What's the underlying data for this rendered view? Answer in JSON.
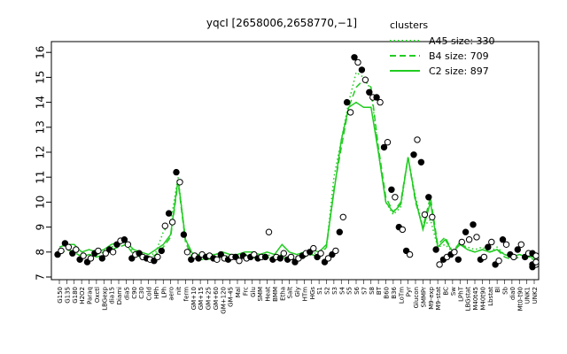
{
  "chart_data": {
    "type": "line",
    "title": "yqcI [2658006,2658770,−1]",
    "xlabel": "",
    "ylabel": "",
    "ylim": [
      7,
      16
    ],
    "y_ticks": [
      7,
      8,
      9,
      10,
      11,
      12,
      13,
      14,
      15,
      16
    ],
    "x_tick_labels": [
      "G150",
      "G135",
      "G180",
      "H2O2",
      "Paraq",
      "Oxctl",
      "LBGexp",
      "dia15",
      "Diami",
      "dia5",
      "C90",
      "C30",
      "Cold",
      "HPh",
      "LPh",
      "aero",
      "nit",
      "ferm",
      "GM+10",
      "GM+15",
      "GM+25",
      "GM+60",
      "GM+120",
      "GM-45",
      "Mal",
      "Frc",
      "Glu",
      "SMM",
      "Heat",
      "BMM",
      "Etha",
      "Salt",
      "Gly",
      "HTm",
      "HGs",
      "S1",
      "S2",
      "S3",
      "S4",
      "S5",
      "S6",
      "S7",
      "S8",
      "BT",
      "B60",
      "B36",
      "LoTm",
      "Pyr",
      "Glucon",
      "SMMPr",
      "M9-exp",
      "M9-stat",
      "BC",
      "Sw",
      "LPhT",
      "LBGstat",
      "M40t45",
      "M40t90",
      "Lbstat",
      "Bl",
      "Sb",
      "dia0",
      "Mt0-t90",
      "UNK1",
      "UNK2"
    ],
    "legend": {
      "title": "clusters",
      "placement": "top-right",
      "entries": [
        {
          "label": "A45 size: 330",
          "style": "dotted"
        },
        {
          "label": "B4 size: 709",
          "style": "dashed"
        },
        {
          "label": "C2 size: 897",
          "style": "solid"
        }
      ]
    },
    "color": "#22cc22",
    "series": [
      {
        "name": "A45 size: 330",
        "style": "dotted",
        "values": [
          8.0,
          8.2,
          8.1,
          7.8,
          7.9,
          7.9,
          8.0,
          8.2,
          8.3,
          8.4,
          8.0,
          7.9,
          7.8,
          8.0,
          8.8,
          9.2,
          11.0,
          8.5,
          7.8,
          7.8,
          7.8,
          7.8,
          7.9,
          7.8,
          7.8,
          7.9,
          7.9,
          7.8,
          7.9,
          7.8,
          7.9,
          7.8,
          7.8,
          7.9,
          8.0,
          7.9,
          8.2,
          11.0,
          12.5,
          14.0,
          15.2,
          15.0,
          14.5,
          12.0,
          10.0,
          9.5,
          9.8,
          11.8,
          10.2,
          9.0,
          9.3,
          8.2,
          8.3,
          8.0,
          8.3,
          8.2,
          8.1,
          8.2,
          8.0,
          8.2,
          7.9,
          7.8,
          7.9,
          7.8,
          7.8
        ]
      },
      {
        "name": "B4 size: 709",
        "style": "dashed",
        "values": [
          7.9,
          8.1,
          8.0,
          7.8,
          7.9,
          7.8,
          7.9,
          8.1,
          8.2,
          8.3,
          7.9,
          7.8,
          7.7,
          7.9,
          8.2,
          8.6,
          10.8,
          8.4,
          7.7,
          7.7,
          7.7,
          7.8,
          7.8,
          7.7,
          7.7,
          7.8,
          7.8,
          7.7,
          7.8,
          7.7,
          7.8,
          7.7,
          7.7,
          7.8,
          7.9,
          7.8,
          8.2,
          10.5,
          12.2,
          13.8,
          14.6,
          14.9,
          14.6,
          12.2,
          10.2,
          9.6,
          10.0,
          11.8,
          10.0,
          9.0,
          10.2,
          8.3,
          8.6,
          8.0,
          8.4,
          8.1,
          8.0,
          8.1,
          8.0,
          8.1,
          7.8,
          7.7,
          7.8,
          7.8,
          7.7
        ]
      },
      {
        "name": "C2 size: 897",
        "style": "solid",
        "values": [
          8.2,
          8.3,
          8.3,
          8.0,
          8.1,
          8.0,
          8.1,
          8.3,
          8.4,
          8.4,
          8.1,
          8.0,
          7.9,
          8.1,
          8.3,
          8.7,
          10.9,
          8.5,
          7.9,
          7.9,
          7.9,
          7.9,
          8.0,
          7.9,
          7.9,
          8.0,
          8.0,
          7.9,
          8.0,
          7.9,
          8.3,
          8.0,
          7.9,
          8.0,
          8.1,
          8.0,
          8.3,
          10.4,
          12.5,
          13.8,
          14.0,
          13.8,
          13.8,
          12.0,
          10.0,
          9.6,
          9.9,
          11.8,
          10.1,
          8.9,
          10.0,
          8.2,
          8.5,
          8.0,
          8.3,
          8.1,
          8.0,
          8.1,
          8.0,
          8.1,
          7.9,
          7.8,
          7.9,
          7.8,
          7.8
        ]
      }
    ],
    "points": [
      [
        0,
        7.9
      ],
      [
        0,
        8.05
      ],
      [
        1,
        8.35
      ],
      [
        1,
        8.2
      ],
      [
        2,
        7.95
      ],
      [
        2,
        8.1
      ],
      [
        3,
        7.7
      ],
      [
        3,
        7.85
      ],
      [
        4,
        7.6
      ],
      [
        4,
        7.75
      ],
      [
        5,
        7.95
      ],
      [
        5,
        8.05
      ],
      [
        6,
        7.75
      ],
      [
        6,
        7.95
      ],
      [
        7,
        8.1
      ],
      [
        7,
        8.0
      ],
      [
        8,
        8.3
      ],
      [
        8,
        8.45
      ],
      [
        9,
        8.5
      ],
      [
        9,
        8.3
      ],
      [
        10,
        7.75
      ],
      [
        10,
        7.9
      ],
      [
        11,
        7.95
      ],
      [
        11,
        7.8
      ],
      [
        12,
        7.75
      ],
      [
        12,
        7.7
      ],
      [
        13,
        7.65
      ],
      [
        13,
        7.8
      ],
      [
        14,
        8.05
      ],
      [
        14,
        9.05
      ],
      [
        15,
        9.55
      ],
      [
        15,
        9.2
      ],
      [
        16,
        11.2
      ],
      [
        16,
        10.8
      ],
      [
        17,
        8.7
      ],
      [
        17,
        8.0
      ],
      [
        18,
        7.7
      ],
      [
        18,
        7.85
      ],
      [
        19,
        7.75
      ],
      [
        19,
        7.9
      ],
      [
        20,
        7.8
      ],
      [
        20,
        7.85
      ],
      [
        21,
        7.75
      ],
      [
        21,
        7.7
      ],
      [
        22,
        7.9
      ],
      [
        22,
        7.75
      ],
      [
        23,
        7.7
      ],
      [
        23,
        7.8
      ],
      [
        24,
        7.8
      ],
      [
        24,
        7.65
      ],
      [
        25,
        7.85
      ],
      [
        25,
        7.75
      ],
      [
        26,
        7.8
      ],
      [
        26,
        7.9
      ],
      [
        27,
        7.75
      ],
      [
        27,
        7.8
      ],
      [
        28,
        7.8
      ],
      [
        28,
        8.8
      ],
      [
        29,
        7.7
      ],
      [
        29,
        7.8
      ],
      [
        30,
        7.75
      ],
      [
        30,
        7.95
      ],
      [
        31,
        7.7
      ],
      [
        31,
        7.8
      ],
      [
        32,
        7.6
      ],
      [
        32,
        7.75
      ],
      [
        33,
        7.85
      ],
      [
        33,
        7.95
      ],
      [
        34,
        8.0
      ],
      [
        34,
        8.15
      ],
      [
        35,
        7.8
      ],
      [
        35,
        7.95
      ],
      [
        36,
        7.6
      ],
      [
        36,
        7.75
      ],
      [
        37,
        7.9
      ],
      [
        37,
        8.05
      ],
      [
        38,
        8.8
      ],
      [
        38,
        9.4
      ],
      [
        39,
        14.0
      ],
      [
        39,
        13.6
      ],
      [
        40,
        15.8
      ],
      [
        40,
        15.6
      ],
      [
        41,
        15.3
      ],
      [
        41,
        14.9
      ],
      [
        42,
        14.4
      ],
      [
        42,
        14.2
      ],
      [
        43,
        14.2
      ],
      [
        43,
        14.0
      ],
      [
        44,
        12.2
      ],
      [
        44,
        12.4
      ],
      [
        45,
        10.5
      ],
      [
        45,
        10.2
      ],
      [
        46,
        9.0
      ],
      [
        46,
        8.9
      ],
      [
        47,
        8.05
      ],
      [
        47,
        7.9
      ],
      [
        48,
        11.9
      ],
      [
        48,
        12.5
      ],
      [
        49,
        11.6
      ],
      [
        49,
        9.5
      ],
      [
        50,
        10.2
      ],
      [
        50,
        9.4
      ],
      [
        51,
        8.1
      ],
      [
        51,
        7.5
      ],
      [
        52,
        7.7
      ],
      [
        52,
        7.8
      ],
      [
        53,
        7.9
      ],
      [
        53,
        8.0
      ],
      [
        54,
        7.7
      ],
      [
        54,
        8.4
      ],
      [
        55,
        8.8
      ],
      [
        55,
        8.5
      ],
      [
        56,
        9.1
      ],
      [
        56,
        8.6
      ],
      [
        57,
        7.7
      ],
      [
        57,
        7.8
      ],
      [
        58,
        8.2
      ],
      [
        58,
        8.4
      ],
      [
        59,
        7.5
      ],
      [
        59,
        7.65
      ],
      [
        60,
        8.5
      ],
      [
        60,
        8.3
      ],
      [
        61,
        7.9
      ],
      [
        61,
        7.8
      ],
      [
        62,
        8.1
      ],
      [
        62,
        8.3
      ],
      [
        63,
        7.8
      ],
      [
        63,
        7.95
      ],
      [
        64,
        7.4
      ],
      [
        64,
        7.5
      ],
      [
        65,
        7.5
      ],
      [
        65,
        7.6
      ],
      [
        66,
        7.95
      ],
      [
        66,
        7.85
      ]
    ]
  }
}
